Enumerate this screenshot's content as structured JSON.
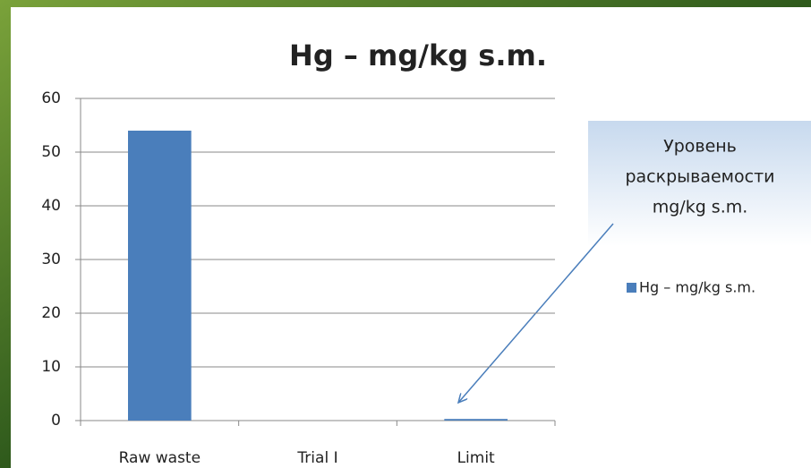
{
  "chart_data": {
    "type": "bar",
    "title": "Hg –  mg/kg s.m.",
    "categories": [
      "Raw waste",
      "Trial I",
      "Limit"
    ],
    "series": [
      {
        "name": "Hg –  mg/kg s.m.",
        "color": "#4a7ebb",
        "values": [
          54,
          0,
          0.3
        ]
      }
    ],
    "ylim": [
      0,
      60
    ],
    "yticks": [
      0,
      10,
      20,
      30,
      40,
      50,
      60
    ],
    "grid": true,
    "legend": "right",
    "annotation": [
      "Уровень",
      "раскрываемости",
      "mg/kg s.m."
    ]
  }
}
